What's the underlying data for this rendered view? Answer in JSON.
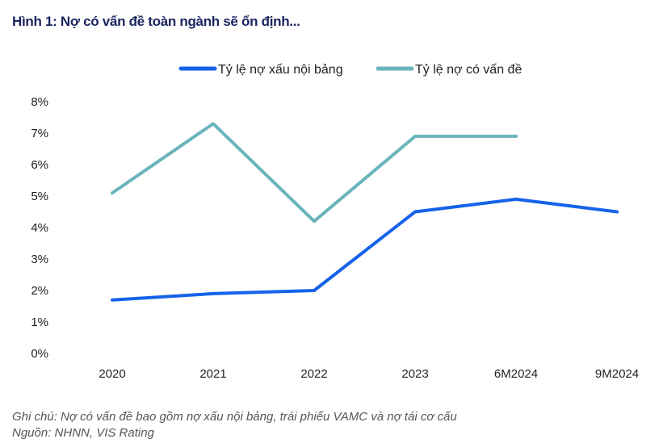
{
  "title": "Hình 1: Nợ có vấn đề toàn ngành sẽ ổn định...",
  "chart_data": {
    "type": "line",
    "title": "Hình 1: Nợ có vấn đề toàn ngành sẽ ổn định...",
    "xlabel": "",
    "ylabel": "",
    "categories": [
      "2020",
      "2021",
      "2022",
      "2023",
      "6M2024",
      "9M2024"
    ],
    "ylim": [
      0,
      8
    ],
    "yticks": [
      "0%",
      "1%",
      "2%",
      "3%",
      "4%",
      "5%",
      "6%",
      "7%",
      "8%"
    ],
    "grid": false,
    "legend_position": "top-center",
    "series": [
      {
        "name": "Tỷ lệ nợ xấu nội bảng",
        "color": "#1663ea",
        "values": [
          1.7,
          1.9,
          2.0,
          4.5,
          4.9,
          4.5
        ]
      },
      {
        "name": "Tỷ lệ nợ có vấn đề",
        "color": "#6ab4bb",
        "values": [
          5.1,
          7.3,
          4.2,
          6.9,
          6.9,
          null
        ]
      }
    ]
  },
  "notes": {
    "note": "Ghi chú: Nợ có vấn đề bao gồm nợ xấu nội bảng, trái phiếu VAMC và nợ tái cơ cấu",
    "source": "Nguồn: NHNN, VIS Rating"
  }
}
